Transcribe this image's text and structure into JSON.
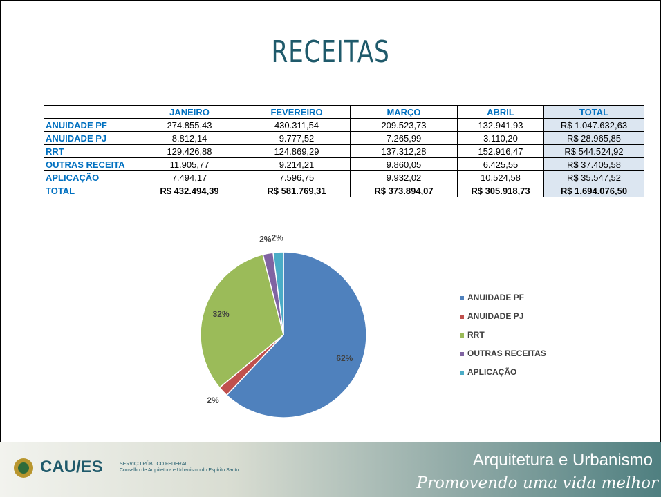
{
  "title": "RECEITAS",
  "table": {
    "columns": [
      "JANEIRO",
      "FEVEREIRO",
      "MARÇO",
      "ABRIL",
      "TOTAL"
    ],
    "rows": [
      {
        "label": "ANUIDADE PF",
        "cells": [
          "274.855,43",
          "430.311,54",
          "209.523,73",
          "132.941,93",
          "R$ 1.047.632,63"
        ]
      },
      {
        "label": "ANUIDADE PJ",
        "cells": [
          "8.812,14",
          "9.777,52",
          "7.265,99",
          "3.110,20",
          "R$ 28.965,85"
        ]
      },
      {
        "label": "RRT",
        "cells": [
          "129.426,88",
          "124.869,29",
          "137.312,28",
          "152.916,47",
          "R$ 544.524,92"
        ]
      },
      {
        "label": "OUTRAS RECEITA",
        "cells": [
          "11.905,77",
          "9.214,21",
          "9.860,05",
          "6.425,55",
          "R$ 37.405,58"
        ]
      },
      {
        "label": "APLICAÇÃO",
        "cells": [
          "7.494,17",
          "7.596,75",
          "9.932,02",
          "10.524,58",
          "R$ 35.547,52"
        ]
      },
      {
        "label": "TOTAL",
        "cells": [
          "R$ 432.494,39",
          "R$ 581.769,31",
          "R$ 373.894,07",
          "R$ 305.918,73",
          "R$ 1.694.076,50"
        ]
      }
    ]
  },
  "chart_data": {
    "type": "pie",
    "categories": [
      "ANUIDADE PF",
      "ANUIDADE PJ",
      "RRT",
      "OUTRAS RECEITAS",
      "APLICAÇÃO"
    ],
    "values": [
      62,
      2,
      32,
      2,
      2
    ],
    "value_labels": [
      "62%",
      "2%",
      "32%",
      "2%",
      "2%"
    ],
    "colors": [
      "#4f81bd",
      "#c0504d",
      "#9bbb59",
      "#8064a2",
      "#4bacc6"
    ],
    "legend": "right"
  },
  "footer": {
    "logo": "CAU/ES",
    "line1": "SERVIÇO PÚBLICO FEDERAL",
    "line2": "Conselho de Arquitetura e Urbanismo do Espírito Santo",
    "slogan1": "Arquitetura e Urbanismo",
    "slogan2": "Promovendo uma vida melhor"
  }
}
